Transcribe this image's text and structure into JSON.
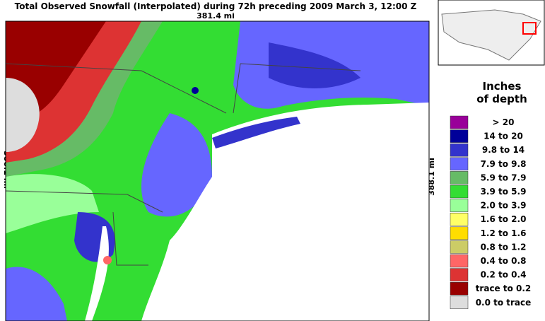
{
  "title": "Total Observed Snowfall (Interpolated) during 72h preceding 2009 March 3, 12:00 Z",
  "map": {
    "width_label": "381.4 mi",
    "height_label": "388.1 mi"
  },
  "legend": {
    "title_lines": [
      "Inches",
      "of depth"
    ],
    "items": [
      {
        "text": "> 20",
        "color": "#990099"
      },
      {
        "text": "14 to 20",
        "color": "#000099"
      },
      {
        "text": "9.8 to 14",
        "color": "#3333cc"
      },
      {
        "text": "7.9 to 9.8",
        "color": "#6666ff"
      },
      {
        "text": "5.9 to 7.9",
        "color": "#66bb66"
      },
      {
        "text": "3.9 to 5.9",
        "color": "#33dd33"
      },
      {
        "text": "2.0 to 3.9",
        "color": "#99ff99"
      },
      {
        "text": "1.6 to 2.0",
        "color": "#ffff66"
      },
      {
        "text": "1.2 to 1.6",
        "color": "#ffdd00"
      },
      {
        "text": "0.8 to 1.2",
        "color": "#cccc66"
      },
      {
        "text": "0.4 to 0.8",
        "color": "#ff6666"
      },
      {
        "text": "0.2 to 0.4",
        "color": "#dd3333"
      },
      {
        "text": "trace to 0.2",
        "color": "#990000"
      },
      {
        "text": "0.0 to trace",
        "color": "#dddddd"
      }
    ]
  }
}
